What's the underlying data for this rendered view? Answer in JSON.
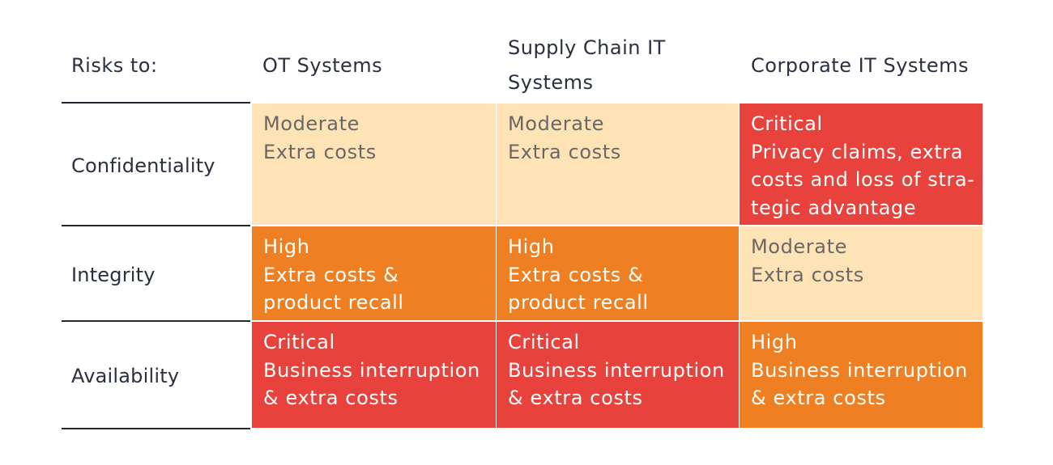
{
  "header": {
    "risks_label": "Risks to:",
    "columns": [
      {
        "lines": [
          "OT Systems"
        ]
      },
      {
        "lines": [
          "Supply Chain IT",
          "Systems"
        ]
      },
      {
        "lines": [
          "Corporate IT Systems"
        ]
      }
    ]
  },
  "rows": [
    {
      "label": "Confidentiality",
      "cells": [
        {
          "level": "moderate",
          "lines": [
            "Moderate",
            "Extra costs"
          ]
        },
        {
          "level": "moderate",
          "lines": [
            "Moderate",
            "Extra costs"
          ]
        },
        {
          "level": "critical",
          "lines": [
            "Critical",
            "Privacy claims, extra",
            "costs and loss of stra-",
            "tegic advantage"
          ]
        }
      ]
    },
    {
      "label": "Integrity",
      "cells": [
        {
          "level": "high",
          "lines": [
            "High",
            "Extra costs &",
            "product recall"
          ]
        },
        {
          "level": "high",
          "lines": [
            "High",
            "Extra costs &",
            "product recall"
          ]
        },
        {
          "level": "moderate",
          "lines": [
            "Moderate",
            "Extra costs"
          ]
        }
      ]
    },
    {
      "label": "Availability",
      "cells": [
        {
          "level": "critical",
          "lines": [
            "Critical",
            "Business interruption",
            "& extra costs"
          ]
        },
        {
          "level": "critical",
          "lines": [
            "Critical",
            "Business interruption",
            "& extra costs"
          ]
        },
        {
          "level": "high",
          "lines": [
            "High",
            "Business interruption",
            "& extra costs"
          ]
        }
      ]
    }
  ],
  "colors": {
    "moderate": "#fde3b6",
    "high": "#ee8023",
    "critical": "#e8423d"
  }
}
